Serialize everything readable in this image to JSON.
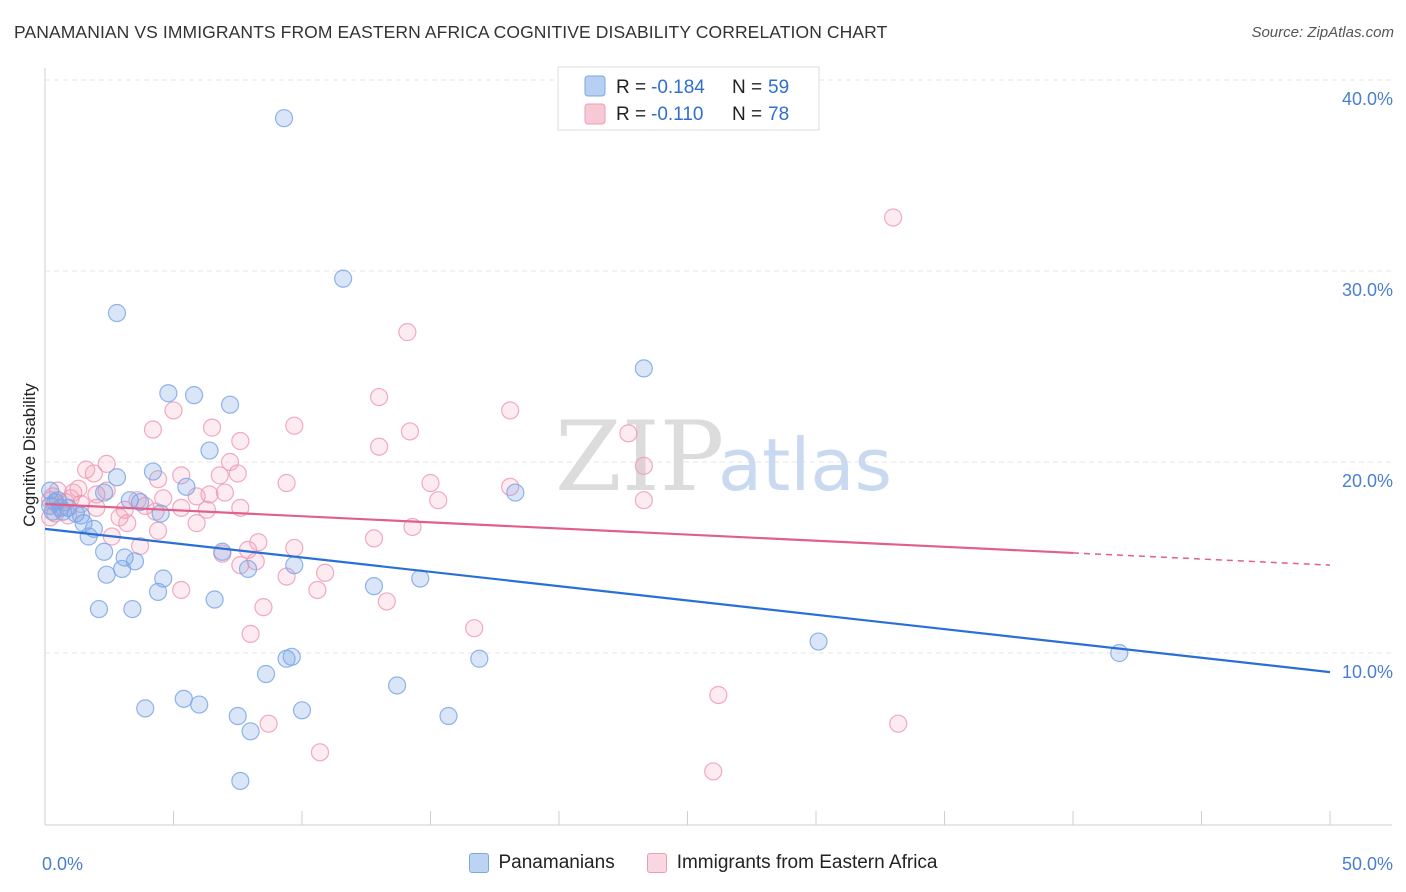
{
  "header": {
    "title": "PANAMANIAN VS IMMIGRANTS FROM EASTERN AFRICA COGNITIVE DISABILITY CORRELATION CHART",
    "source": "Source: ZipAtlas.com"
  },
  "watermark": {
    "zip": "ZIP",
    "atlas": "atlas"
  },
  "legend": {
    "r_label": "R =",
    "n_label": "N =",
    "entries": [
      {
        "r": "-0.184",
        "n": "59",
        "color": "#7ba7e6"
      },
      {
        "r": "-0.110",
        "n": "78",
        "color": "#f09bb5"
      }
    ]
  },
  "bottom_legend": {
    "panamanians": "Panamanians",
    "immigrants": "Immigrants from Eastern Africa"
  },
  "colors": {
    "blue": "#7ba7e6",
    "blue_line": "#2a6fd4",
    "pink": "#f09bb5",
    "pink_line": "#e0608a"
  },
  "chart_data": {
    "type": "scatter",
    "ylabel": "Cognitive Disability",
    "x_ticks": [
      "0.0%",
      "50.0%"
    ],
    "y_ticks": [
      "10.0%",
      "20.0%",
      "30.0%",
      "40.0%"
    ],
    "xlim": [
      0,
      50
    ],
    "ylim": [
      0,
      41
    ],
    "grid": true,
    "series": [
      {
        "name": "Panamanians",
        "trend": {
          "x": [
            0,
            50
          ],
          "y": [
            16.5,
            9.0
          ],
          "dashed_from": null
        },
        "points": [
          [
            9.3,
            38.0
          ],
          [
            11.6,
            29.6
          ],
          [
            2.8,
            27.8
          ],
          [
            23.3,
            24.9
          ],
          [
            4.8,
            23.6
          ],
          [
            5.8,
            23.5
          ],
          [
            7.2,
            23.0
          ],
          [
            6.4,
            20.6
          ],
          [
            4.2,
            19.5
          ],
          [
            2.8,
            19.2
          ],
          [
            5.5,
            18.7
          ],
          [
            18.3,
            18.4
          ],
          [
            0.2,
            18.5
          ],
          [
            2.3,
            18.4
          ],
          [
            0.5,
            18.0
          ],
          [
            3.3,
            18.0
          ],
          [
            3.7,
            17.9
          ],
          [
            0.2,
            17.7
          ],
          [
            0.6,
            17.6
          ],
          [
            0.9,
            17.6
          ],
          [
            0.3,
            17.4
          ],
          [
            0.7,
            17.4
          ],
          [
            1.2,
            17.3
          ],
          [
            1.4,
            17.2
          ],
          [
            4.5,
            17.3
          ],
          [
            1.5,
            16.8
          ],
          [
            1.9,
            16.5
          ],
          [
            1.7,
            16.1
          ],
          [
            6.9,
            15.3
          ],
          [
            2.3,
            15.3
          ],
          [
            3.1,
            15.0
          ],
          [
            3.5,
            14.8
          ],
          [
            9.7,
            14.6
          ],
          [
            3.0,
            14.4
          ],
          [
            7.9,
            14.4
          ],
          [
            2.4,
            14.1
          ],
          [
            4.6,
            13.9
          ],
          [
            14.6,
            13.9
          ],
          [
            12.8,
            13.5
          ],
          [
            4.4,
            13.2
          ],
          [
            6.6,
            12.8
          ],
          [
            2.1,
            12.3
          ],
          [
            3.4,
            12.3
          ],
          [
            30.1,
            10.6
          ],
          [
            41.8,
            10.0
          ],
          [
            9.4,
            9.7
          ],
          [
            9.6,
            9.8
          ],
          [
            16.9,
            9.7
          ],
          [
            8.6,
            8.9
          ],
          [
            13.7,
            8.3
          ],
          [
            5.4,
            7.6
          ],
          [
            6.0,
            7.3
          ],
          [
            3.9,
            7.1
          ],
          [
            10.0,
            7.0
          ],
          [
            7.5,
            6.7
          ],
          [
            15.7,
            6.7
          ],
          [
            8.0,
            5.9
          ],
          [
            7.6,
            3.3
          ],
          [
            0.4,
            17.9
          ]
        ]
      },
      {
        "name": "Immigrants from Eastern Africa",
        "trend": {
          "x": [
            0,
            50
          ],
          "y": [
            17.8,
            14.6
          ],
          "dashed_from": 40
        },
        "points": [
          [
            33.0,
            32.8
          ],
          [
            14.1,
            26.8
          ],
          [
            13.0,
            23.4
          ],
          [
            18.1,
            22.7
          ],
          [
            5.0,
            22.7
          ],
          [
            4.2,
            21.7
          ],
          [
            6.5,
            21.8
          ],
          [
            9.7,
            21.9
          ],
          [
            14.2,
            21.6
          ],
          [
            22.7,
            21.5
          ],
          [
            7.6,
            21.1
          ],
          [
            13.0,
            20.8
          ],
          [
            23.3,
            19.8
          ],
          [
            7.2,
            20.0
          ],
          [
            2.4,
            19.9
          ],
          [
            1.6,
            19.6
          ],
          [
            1.9,
            19.4
          ],
          [
            5.3,
            19.3
          ],
          [
            4.4,
            19.1
          ],
          [
            6.8,
            19.3
          ],
          [
            7.5,
            19.4
          ],
          [
            9.4,
            18.9
          ],
          [
            18.1,
            18.7
          ],
          [
            0.5,
            18.5
          ],
          [
            1.1,
            18.4
          ],
          [
            1.3,
            18.6
          ],
          [
            2.0,
            18.3
          ],
          [
            2.4,
            18.5
          ],
          [
            3.6,
            18.0
          ],
          [
            4.6,
            18.1
          ],
          [
            5.9,
            18.2
          ],
          [
            6.4,
            18.3
          ],
          [
            7.0,
            18.4
          ],
          [
            15.3,
            18.0
          ],
          [
            23.3,
            18.0
          ],
          [
            0.2,
            18.0
          ],
          [
            0.8,
            17.9
          ],
          [
            1.4,
            17.8
          ],
          [
            2.0,
            17.6
          ],
          [
            3.1,
            17.5
          ],
          [
            3.9,
            17.7
          ],
          [
            5.3,
            17.6
          ],
          [
            6.3,
            17.5
          ],
          [
            7.6,
            17.6
          ],
          [
            0.4,
            17.3
          ],
          [
            0.9,
            17.2
          ],
          [
            2.9,
            17.1
          ],
          [
            4.3,
            17.4
          ],
          [
            3.2,
            16.8
          ],
          [
            5.9,
            16.8
          ],
          [
            14.3,
            16.6
          ],
          [
            4.4,
            16.4
          ],
          [
            2.6,
            16.1
          ],
          [
            12.8,
            16.0
          ],
          [
            8.3,
            15.8
          ],
          [
            9.7,
            15.5
          ],
          [
            3.7,
            15.6
          ],
          [
            7.9,
            15.4
          ],
          [
            6.9,
            15.2
          ],
          [
            8.2,
            14.8
          ],
          [
            7.6,
            14.6
          ],
          [
            10.9,
            14.2
          ],
          [
            9.4,
            14.0
          ],
          [
            5.3,
            13.3
          ],
          [
            10.6,
            13.3
          ],
          [
            13.3,
            12.7
          ],
          [
            8.5,
            12.4
          ],
          [
            16.7,
            11.3
          ],
          [
            8.0,
            11.0
          ],
          [
            0.2,
            17.1
          ],
          [
            26.2,
            7.8
          ],
          [
            33.2,
            6.3
          ],
          [
            8.7,
            6.3
          ],
          [
            10.7,
            4.8
          ],
          [
            26.0,
            3.8
          ],
          [
            0.3,
            18.2
          ],
          [
            1.0,
            18.1
          ],
          [
            15.0,
            18.9
          ]
        ]
      }
    ]
  }
}
